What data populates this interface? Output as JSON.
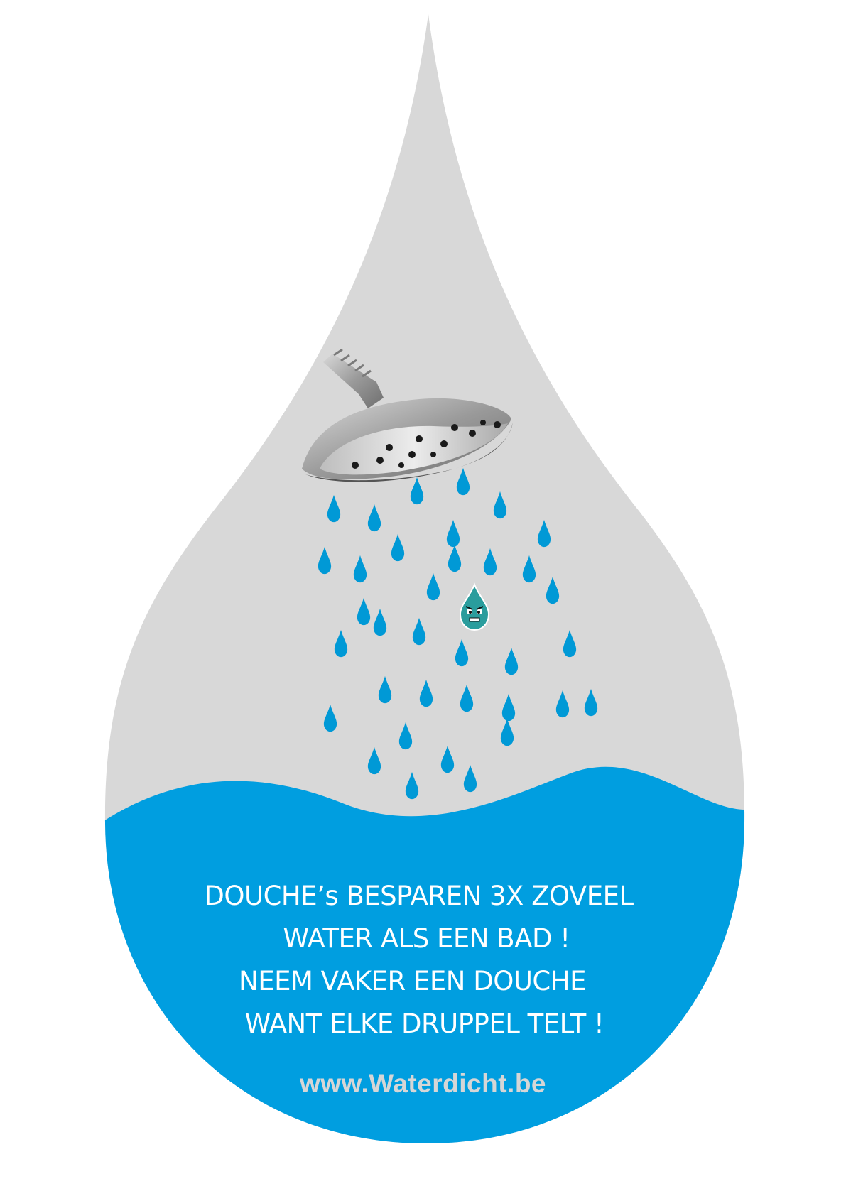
{
  "poster": {
    "lines": [
      "DOUCHE’s BESPAREN 3X ZOVEEL",
      "WATER ALS EEN BAD !",
      "NEEM VAKER EEN DOUCHE",
      "WANT ELKE DRUPPEL TELT !"
    ],
    "website": "www.Waterdicht.be"
  },
  "colors": {
    "background": "#ffffff",
    "drop_gray": "#d8d8d8",
    "water_blue": "#009ee0",
    "droplet_blue": "#0099d6",
    "text_white": "#ffffff",
    "website_gray": "#d6d6d6",
    "mascot_teal": "#2a9d9d"
  },
  "icons": {
    "shower": "shower-head-icon",
    "droplet": "water-droplet-icon",
    "mascot": "angry-droplet-mascot-icon"
  }
}
